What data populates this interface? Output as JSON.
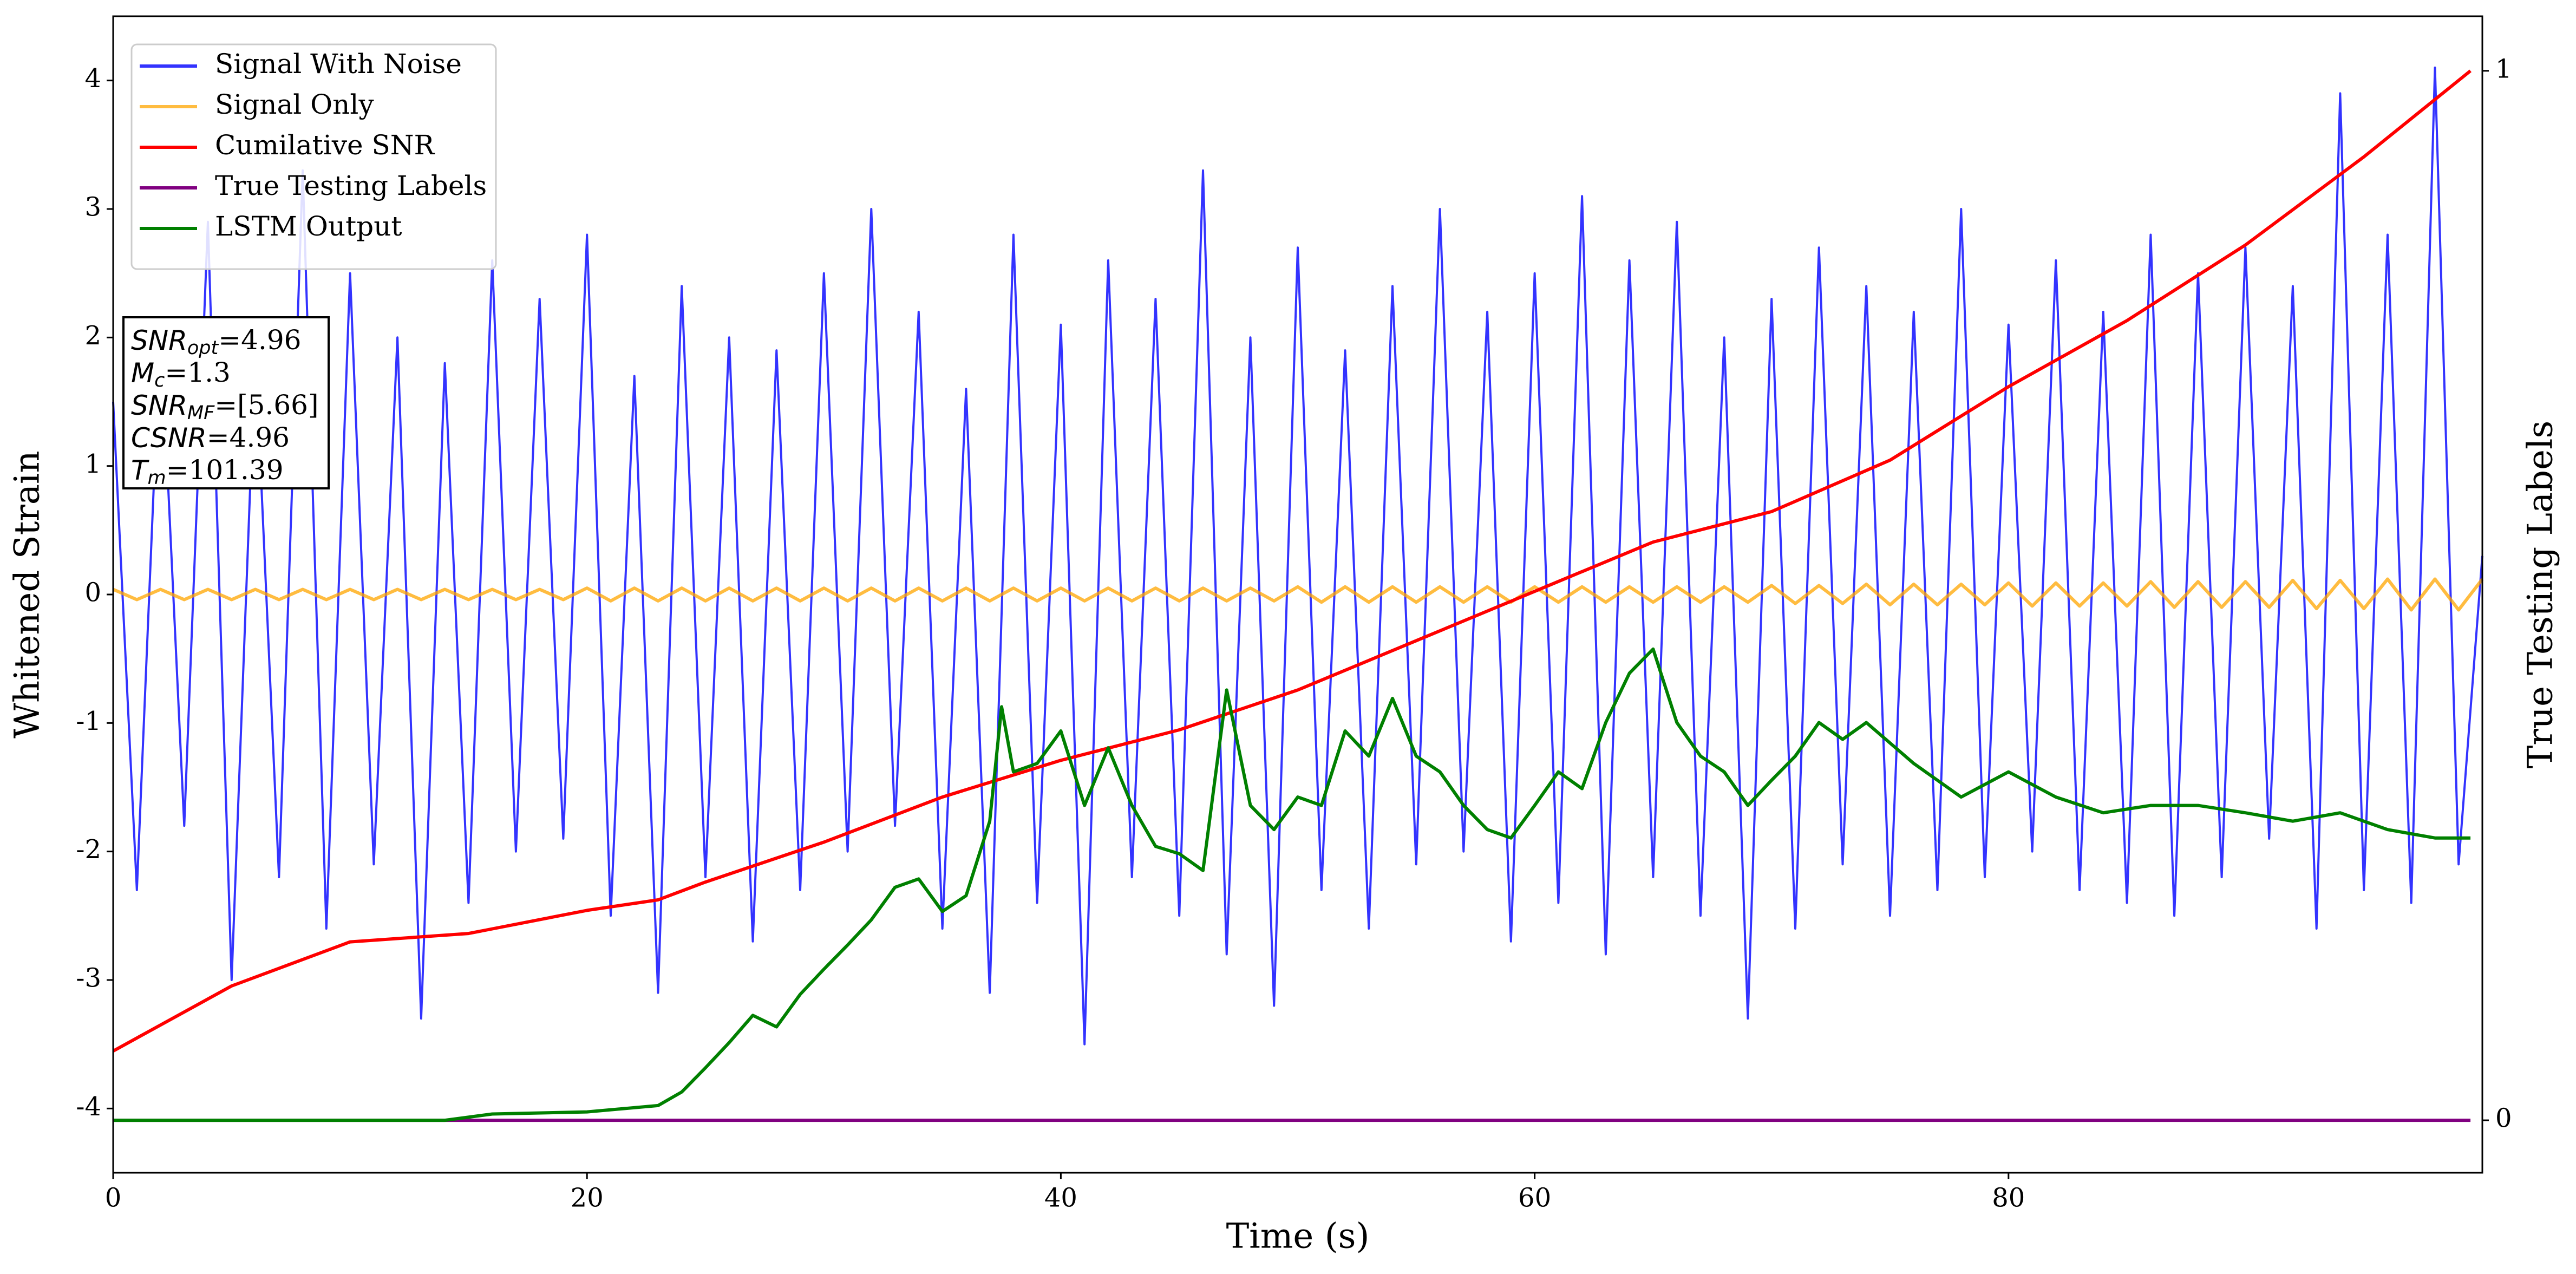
{
  "chart_data": {
    "type": "line",
    "xlabel": "Time (s)",
    "ylabel": "Whitened Strain",
    "y2label": "True Testing Labels",
    "xlim": [
      0,
      100
    ],
    "xticks": [
      0,
      20,
      40,
      60,
      80
    ],
    "ylim": [
      -4.5,
      4.5
    ],
    "yticks": [
      -4,
      -3,
      -2,
      -1,
      0,
      1,
      2,
      3,
      4
    ],
    "y2lim": [
      -0.05,
      1.052
    ],
    "y2ticks": [
      0,
      1
    ],
    "legend": "upper left",
    "x": [
      0,
      1,
      2,
      3,
      4,
      5,
      6,
      7,
      8,
      9,
      10,
      11,
      12,
      13,
      14,
      15,
      16,
      17,
      18,
      19,
      20,
      21,
      22,
      23,
      24,
      25,
      26,
      27,
      28,
      29,
      30,
      31,
      32,
      33,
      34,
      35,
      36,
      37,
      38,
      39,
      40,
      41,
      42,
      43,
      44,
      45,
      46,
      47,
      48,
      49,
      50,
      51,
      52,
      53,
      54,
      55,
      56,
      57,
      58,
      59,
      60,
      61,
      62,
      63,
      64,
      65,
      66,
      67,
      68,
      69,
      70,
      71,
      72,
      73,
      74,
      75,
      76,
      77,
      78,
      79,
      80,
      81,
      82,
      83,
      84,
      85,
      86,
      87,
      88,
      89,
      90,
      91,
      92,
      93,
      94,
      95,
      96,
      97,
      98,
      99,
      100
    ],
    "series": [
      {
        "name": "Signal With Noise",
        "color": "#0000ff",
        "values": [
          1.5,
          -2.3,
          2.1,
          -1.8,
          2.9,
          -3.0,
          1.9,
          -2.2,
          3.3,
          -2.6,
          2.5,
          -2.1,
          2.0,
          -3.3,
          1.8,
          -2.4,
          2.6,
          -2.0,
          2.3,
          -1.9,
          2.8,
          -2.5,
          1.7,
          -3.1,
          2.4,
          -2.2,
          2.0,
          -2.7,
          1.9,
          -2.3,
          2.5,
          -2.0,
          3.0,
          -1.8,
          2.2,
          -2.6,
          1.6,
          -3.1,
          2.8,
          -2.4,
          2.1,
          -3.5,
          2.6,
          -2.2,
          2.3,
          -2.5,
          3.3,
          -2.8,
          2.0,
          -3.2,
          2.7,
          -2.3,
          1.9,
          -2.6,
          2.4,
          -2.1,
          3.0,
          -2.0,
          2.2,
          -2.7,
          2.5,
          -2.4,
          3.1,
          -2.8,
          2.6,
          -2.2,
          2.9,
          -2.5,
          2.0,
          -3.3,
          2.3,
          -2.6,
          2.7,
          -2.1,
          2.4,
          -2.5,
          2.2,
          -2.3,
          3.0,
          -2.2,
          2.1,
          -2.0,
          2.6,
          -2.3,
          2.2,
          -2.4,
          2.8,
          -2.5,
          2.5,
          -2.2,
          2.7,
          -1.9,
          2.4,
          -2.6,
          3.9,
          -2.3,
          2.8,
          -2.4,
          4.1,
          -2.1,
          0.3
        ]
      },
      {
        "name": "Signal Only",
        "color": "#ffa500",
        "values": [
          0.04,
          -0.04,
          0.04,
          -0.04,
          0.04,
          -0.04,
          0.04,
          -0.04,
          0.04,
          -0.04,
          0.04,
          -0.04,
          0.04,
          -0.04,
          0.04,
          -0.04,
          0.04,
          -0.04,
          0.04,
          -0.04,
          0.05,
          -0.05,
          0.05,
          -0.05,
          0.05,
          -0.05,
          0.05,
          -0.05,
          0.05,
          -0.05,
          0.05,
          -0.05,
          0.05,
          -0.05,
          0.05,
          -0.05,
          0.05,
          -0.05,
          0.05,
          -0.05,
          0.05,
          -0.05,
          0.05,
          -0.05,
          0.05,
          -0.05,
          0.05,
          -0.05,
          0.05,
          -0.05,
          0.06,
          -0.06,
          0.06,
          -0.06,
          0.06,
          -0.06,
          0.06,
          -0.06,
          0.06,
          -0.06,
          0.06,
          -0.06,
          0.06,
          -0.06,
          0.06,
          -0.06,
          0.06,
          -0.06,
          0.06,
          -0.06,
          0.07,
          -0.07,
          0.07,
          -0.07,
          0.08,
          -0.08,
          0.08,
          -0.08,
          0.08,
          -0.08,
          0.09,
          -0.09,
          0.09,
          -0.09,
          0.09,
          -0.09,
          0.1,
          -0.1,
          0.1,
          -0.1,
          0.1,
          -0.1,
          0.11,
          -0.11,
          0.11,
          -0.11,
          0.12,
          -0.12,
          0.12,
          -0.12,
          0.12
        ]
      },
      {
        "name": "Cumilative SNR",
        "color": "#ff0000",
        "axis": "y2",
        "x": [
          0,
          5,
          10,
          15,
          20,
          23,
          25,
          30,
          35,
          40,
          45,
          50,
          55,
          60,
          65,
          70,
          75,
          80,
          85,
          90,
          95,
          99.5
        ],
        "values": [
          0.066,
          0.128,
          0.17,
          0.178,
          0.2,
          0.21,
          0.227,
          0.265,
          0.308,
          0.343,
          0.372,
          0.41,
          0.457,
          0.504,
          0.551,
          0.58,
          0.629,
          0.699,
          0.762,
          0.834,
          0.918,
          1.0
        ]
      },
      {
        "name": "True Testing Labels",
        "color": "#800080",
        "axis": "y2",
        "x": [
          0,
          99.5
        ],
        "values": [
          0,
          0
        ]
      },
      {
        "name": "LSTM Output",
        "color": "#008000",
        "axis": "y2",
        "x": [
          0,
          14,
          16,
          20,
          23,
          24,
          25,
          26,
          27,
          28,
          29,
          30,
          31,
          32,
          33,
          34,
          35,
          36,
          37,
          37.5,
          38,
          39,
          40,
          41,
          42,
          43,
          44,
          45,
          46,
          47,
          48,
          49,
          50,
          51,
          52,
          53,
          54,
          55,
          56,
          57,
          58,
          59,
          60,
          61,
          62,
          63,
          64,
          65,
          66,
          67,
          68,
          69,
          70,
          71,
          72,
          73,
          74,
          76,
          78,
          80,
          82,
          84,
          86,
          88,
          90,
          92,
          94,
          96,
          98,
          99.5
        ],
        "values": [
          0,
          0,
          0.006,
          0.008,
          0.014,
          0.027,
          0.05,
          0.074,
          0.1,
          0.089,
          0.12,
          0.144,
          0.167,
          0.191,
          0.222,
          0.23,
          0.199,
          0.214,
          0.285,
          0.394,
          0.332,
          0.34,
          0.371,
          0.3,
          0.355,
          0.3,
          0.261,
          0.254,
          0.238,
          0.41,
          0.3,
          0.277,
          0.308,
          0.3,
          0.371,
          0.347,
          0.402,
          0.347,
          0.332,
          0.3,
          0.277,
          0.269,
          0.3,
          0.332,
          0.316,
          0.379,
          0.426,
          0.449,
          0.379,
          0.347,
          0.332,
          0.3,
          0.324,
          0.347,
          0.379,
          0.363,
          0.379,
          0.34,
          0.308,
          0.332,
          0.308,
          0.293,
          0.3,
          0.3,
          0.293,
          0.285,
          0.293,
          0.277,
          0.269,
          0.269
        ]
      }
    ],
    "annotations": [
      {
        "text": "SNR",
        "sub": "opt",
        "rest": "=4.96"
      },
      {
        "text": "M",
        "sub": "c",
        "rest": "=1.3"
      },
      {
        "text": "SNR",
        "sub": "MF",
        "rest": "=[5.66]"
      },
      {
        "text": "CSNR",
        "rest": "=4.96"
      },
      {
        "text": "T",
        "sub": "m",
        "rest": "=101.39"
      }
    ]
  }
}
